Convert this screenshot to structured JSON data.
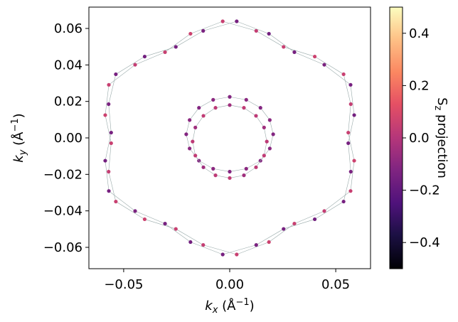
{
  "chart_data": {
    "type": "scatter",
    "xlabel_parts": [
      "k",
      "x",
      "  (Å",
      "−1",
      ")"
    ],
    "ylabel_parts": [
      "k",
      "y",
      "  (Å",
      "−1",
      ")"
    ],
    "xlim": [
      -0.0664,
      0.0664
    ],
    "ylim": [
      -0.0717,
      0.0717
    ],
    "xticks": [
      {
        "value": -0.05,
        "label": "−0.05"
      },
      {
        "value": 0,
        "label": "0.00"
      },
      0.05
    ],
    "yticks": [
      {
        "value": -0.06,
        "label": "−0.06"
      },
      {
        "value": -0.04,
        "label": "−0.04"
      },
      {
        "value": -0.02,
        "label": "−0.02"
      },
      {
        "value": 0,
        "label": "0.00"
      },
      0.02,
      0.04,
      0.06
    ],
    "colormap": "magma",
    "colorbar": {
      "label_parts": [
        "S",
        "z",
        " projection"
      ],
      "clim": [
        -0.5,
        0.5
      ],
      "ticks": [
        {
          "value": -0.4,
          "label": "−0.4"
        },
        {
          "value": -0.2,
          "label": "−0.2"
        },
        {
          "value": 0,
          "label": "0.0"
        },
        0.2,
        0.4
      ]
    },
    "series": [
      {
        "x": [
          0.0559,
          0.0571,
          0.0537,
          0.0401,
          0.0254,
          0.0125,
          -0.0033,
          -0.0185,
          -0.0305,
          -0.0446,
          -0.057,
          -0.0587,
          -0.0559,
          -0.0571,
          -0.0537,
          -0.0401,
          -0.0254,
          -0.0125,
          0.0033,
          0.0185,
          0.0305,
          0.0446,
          0.057,
          0.0587
        ],
        "y": [
          0.0029,
          0.0185,
          0.0349,
          0.0446,
          0.0499,
          0.0587,
          0.0639,
          0.0571,
          0.047,
          0.0401,
          0.0291,
          0.0125,
          -0.0029,
          -0.0185,
          -0.0349,
          -0.0446,
          -0.0499,
          -0.0587,
          -0.0639,
          -0.0571,
          -0.047,
          -0.0401,
          -0.0291,
          -0.0125
        ],
        "z": [
          0.05,
          0.04,
          0.05,
          0.06,
          0.05,
          0.04,
          0.05,
          0.06,
          0.05,
          0.04,
          0.05,
          0.06,
          0.05,
          0.04,
          0.05,
          0.06,
          0.05,
          0.04,
          0.05,
          0.06,
          0.05,
          0.04,
          0.05,
          0.06
        ]
      },
      {
        "x": [
          0.0559,
          0.0571,
          0.0537,
          0.0401,
          0.0254,
          0.0125,
          -0.0033,
          -0.0185,
          -0.0305,
          -0.0446,
          -0.057,
          -0.0587,
          -0.0559,
          -0.0571,
          -0.0537,
          -0.0401,
          -0.0254,
          -0.0125,
          0.0033,
          0.0185,
          0.0305,
          0.0446,
          0.057,
          0.0587
        ],
        "y": [
          -0.0029,
          -0.0185,
          -0.0349,
          -0.0446,
          -0.0499,
          -0.0587,
          -0.0639,
          -0.0571,
          -0.047,
          -0.0401,
          -0.0291,
          -0.0125,
          0.0029,
          0.0185,
          0.0349,
          0.0446,
          0.0499,
          0.0587,
          0.0639,
          0.0571,
          0.047,
          0.0401,
          0.0291,
          0.0125
        ],
        "z": [
          -0.15,
          -0.14,
          -0.15,
          -0.16,
          -0.15,
          -0.14,
          -0.15,
          -0.16,
          -0.15,
          -0.14,
          -0.15,
          -0.16,
          -0.15,
          -0.14,
          -0.15,
          -0.16,
          -0.15,
          -0.14,
          -0.15,
          -0.16,
          -0.15,
          -0.14,
          -0.15,
          -0.16
        ]
      },
      {
        "x": [
          0.0205,
          0.0189,
          0.0145,
          0.0078,
          0,
          -0.0078,
          -0.0145,
          -0.0189,
          -0.0205,
          -0.0189,
          -0.0145,
          -0.0078,
          0,
          0.0078,
          0.0145,
          0.0189
        ],
        "y": [
          0.002,
          0.0098,
          0.0165,
          0.0209,
          0.0225,
          0.0209,
          0.0165,
          0.0098,
          0.002,
          -0.0058,
          -0.0125,
          -0.0169,
          -0.0185,
          -0.0169,
          -0.0125,
          -0.0058
        ],
        "z": [
          -0.12,
          -0.1,
          -0.12,
          -0.1,
          -0.12,
          -0.1,
          -0.12,
          -0.1,
          -0.12,
          -0.1,
          -0.12,
          -0.1,
          -0.12,
          -0.1,
          -0.12,
          -0.1
        ]
      },
      {
        "x": [
          0.0175,
          0.0162,
          0.0124,
          0.0067,
          0,
          -0.0067,
          -0.0124,
          -0.0162,
          -0.0175,
          -0.0162,
          -0.0124,
          -0.0067,
          0,
          0.0067,
          0.0124,
          0.0162
        ],
        "y": [
          -0.002,
          0.0057,
          0.0121,
          0.0165,
          0.018,
          0.0165,
          0.0121,
          0.0057,
          -0.002,
          -0.0097,
          -0.0161,
          -0.0205,
          -0.022,
          -0.0205,
          -0.0161,
          -0.0097
        ],
        "z": [
          0.02,
          -0.05,
          0.02,
          0.03,
          -0.05,
          0.02,
          0.03,
          -0.05,
          0.02,
          0.03,
          -0.05,
          0.02,
          0.03,
          -0.05,
          0.02,
          0.03
        ]
      }
    ]
  }
}
